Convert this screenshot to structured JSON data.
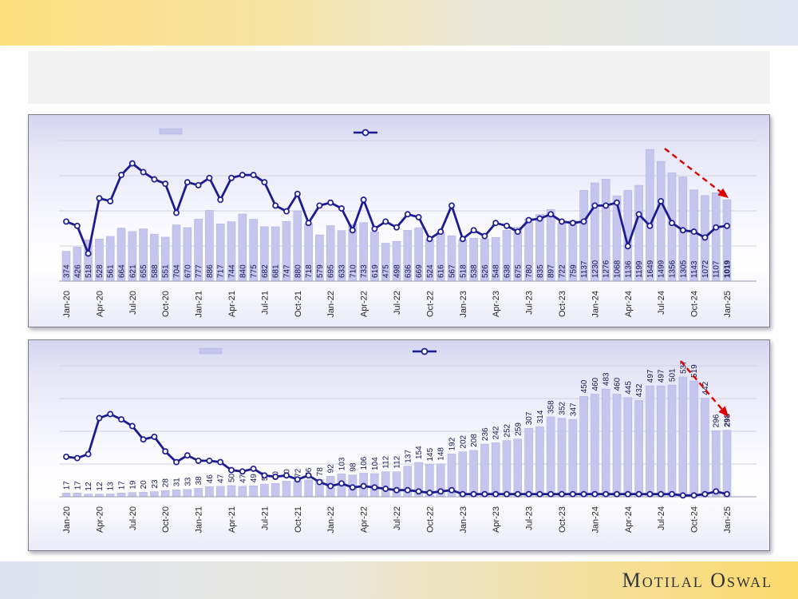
{
  "footer": {
    "brand": "Motilal Oswal"
  },
  "title_bar": {
    "text": ""
  },
  "style": {
    "bar_fill": "#c5c5ee",
    "bar_edge": "#b3b3e4",
    "line_color": "#1c1c8e",
    "marker_fill": "#ffffff",
    "grid_color": "#d2d2df",
    "axis_color": "#9a9ab8",
    "bar_label_color": "#15154a",
    "tick_label_color": "#262626",
    "arrow_color": "#dd0000"
  },
  "chart_data": [
    {
      "name": "top-chart",
      "type": "bar",
      "legend": {
        "bar_swatch": true,
        "line_swatch": true,
        "labels_visible": false
      },
      "x_tick_interval": 3,
      "annotations": [
        "red-dashed-declining-arrow"
      ],
      "categories": [
        "Jan-20",
        "Feb-20",
        "Mar-20",
        "Apr-20",
        "May-20",
        "Jun-20",
        "Jul-20",
        "Aug-20",
        "Sep-20",
        "Oct-20",
        "Nov-20",
        "Dec-20",
        "Jan-21",
        "Feb-21",
        "Mar-21",
        "Apr-21",
        "May-21",
        "Jun-21",
        "Jul-21",
        "Aug-21",
        "Sep-21",
        "Oct-21",
        "Nov-21",
        "Dec-21",
        "Jan-22",
        "Feb-22",
        "Mar-22",
        "Apr-22",
        "May-22",
        "Jun-22",
        "Jul-22",
        "Aug-22",
        "Sep-22",
        "Oct-22",
        "Nov-22",
        "Dec-22",
        "Jan-23",
        "Feb-23",
        "Mar-23",
        "Apr-23",
        "May-23",
        "Jun-23",
        "Jul-23",
        "Aug-23",
        "Sep-23",
        "Oct-23",
        "Nov-23",
        "Dec-23",
        "Jan-24",
        "Feb-24",
        "Mar-24",
        "Apr-24",
        "May-24",
        "Jun-24",
        "Jul-24",
        "Aug-24",
        "Sep-24",
        "Oct-24",
        "Nov-24",
        "Dec-24",
        "Jan-25"
      ],
      "bar_values": [
        374,
        426,
        518,
        528,
        561,
        664,
        621,
        655,
        588,
        551,
        704,
        670,
        777,
        886,
        717,
        744,
        840,
        775,
        682,
        681,
        747,
        880,
        718,
        579,
        695,
        633,
        710,
        733,
        619,
        475,
        498,
        636,
        669,
        524,
        616,
        567,
        518,
        538,
        526,
        548,
        638,
        675,
        780,
        835,
        897,
        722,
        759,
        1137,
        1230,
        1276,
        1068,
        1136,
        1199,
        1649,
        1499,
        1356,
        1305,
        1143,
        1072,
        1107,
        1019
      ],
      "line_relative_height_pct": [
        41,
        38,
        19,
        57,
        55,
        73,
        81,
        75,
        70,
        67,
        47,
        68,
        66,
        71,
        56,
        71,
        73,
        73,
        68,
        52,
        48,
        60,
        40,
        52,
        54,
        50,
        35,
        56,
        36,
        41,
        37,
        46,
        44,
        29,
        34,
        52,
        29,
        35,
        31,
        40,
        38,
        34,
        42,
        43,
        46,
        41,
        40,
        41,
        52,
        52,
        54,
        24,
        46,
        38,
        55,
        40,
        35,
        34,
        30,
        37,
        38
      ],
      "last_label_bold": true
    },
    {
      "name": "bottom-chart",
      "type": "bar",
      "legend": {
        "bar_swatch": true,
        "line_swatch": true,
        "labels_visible": false
      },
      "x_tick_interval": 3,
      "annotations": [
        "red-dashed-declining-arrow"
      ],
      "categories": [
        "Jan-20",
        "Feb-20",
        "Mar-20",
        "Apr-20",
        "May-20",
        "Jun-20",
        "Jul-20",
        "Aug-20",
        "Sep-20",
        "Oct-20",
        "Nov-20",
        "Dec-20",
        "Jan-21",
        "Feb-21",
        "Mar-21",
        "Apr-21",
        "May-21",
        "Jun-21",
        "Jul-21",
        "Aug-21",
        "Sep-21",
        "Oct-21",
        "Nov-21",
        "Dec-21",
        "Jan-22",
        "Feb-22",
        "Mar-22",
        "Apr-22",
        "May-22",
        "Jun-22",
        "Jul-22",
        "Aug-22",
        "Sep-22",
        "Oct-22",
        "Nov-22",
        "Dec-22",
        "Jan-23",
        "Feb-23",
        "Mar-23",
        "Apr-23",
        "May-23",
        "Jun-23",
        "Jul-23",
        "Aug-23",
        "Sep-23",
        "Oct-23",
        "Nov-23",
        "Dec-23",
        "Jan-24",
        "Feb-24",
        "Mar-24",
        "Apr-24",
        "May-24",
        "Jun-24",
        "Jul-24",
        "Aug-24",
        "Sep-24",
        "Oct-24",
        "Nov-24",
        "Dec-24",
        "Jan-25"
      ],
      "bar_values": [
        17,
        17,
        12,
        12,
        13,
        17,
        19,
        20,
        23,
        28,
        31,
        33,
        38,
        46,
        47,
        50,
        47,
        49,
        57,
        60,
        70,
        72,
        76,
        78,
        92,
        103,
        98,
        106,
        104,
        112,
        112,
        137,
        154,
        145,
        148,
        192,
        202,
        208,
        236,
        242,
        252,
        259,
        307,
        314,
        358,
        352,
        347,
        450,
        460,
        483,
        460,
        445,
        432,
        497,
        497,
        501,
        537,
        519,
        442,
        296,
        298
      ],
      "line_relative_height_pct": [
        30,
        29,
        32,
        59,
        62,
        58,
        53,
        43,
        45,
        34,
        26,
        31,
        27,
        27,
        26,
        20,
        19,
        21,
        16,
        15,
        16,
        13,
        16,
        11,
        8,
        10,
        7,
        8,
        7,
        6,
        5,
        5,
        4,
        3,
        4,
        5,
        2,
        2,
        2,
        2,
        2,
        2,
        2,
        2,
        2,
        2,
        2,
        2,
        2,
        2,
        2,
        2,
        2,
        2,
        2,
        2,
        1,
        1,
        2,
        4,
        2
      ],
      "last_label_bold": true
    }
  ]
}
